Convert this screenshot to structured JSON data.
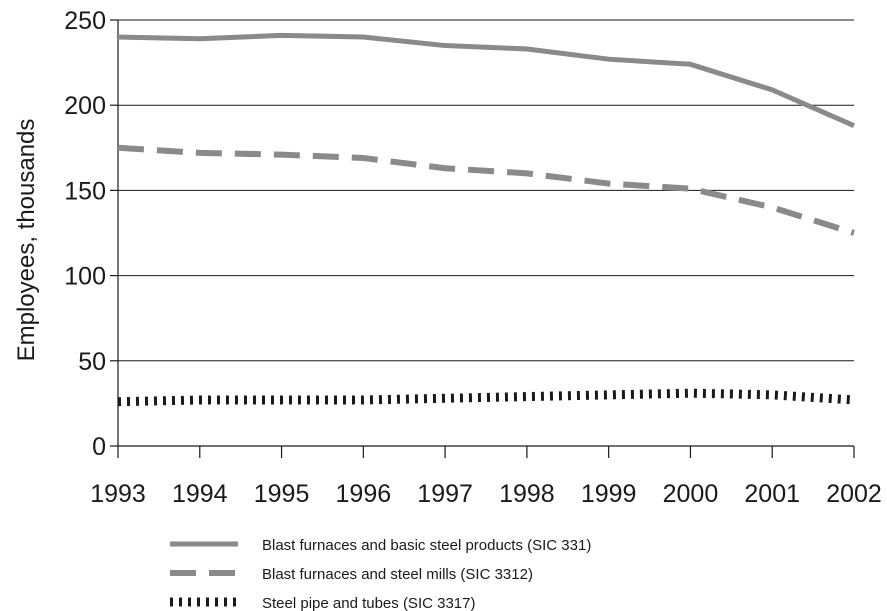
{
  "chart_data": {
    "type": "line",
    "title": "",
    "xlabel": "",
    "ylabel": "Employees, thousands",
    "ylim": [
      0,
      250
    ],
    "yticks": [
      0,
      50,
      100,
      150,
      200,
      250
    ],
    "x": [
      "1993",
      "1994",
      "1995",
      "1996",
      "1997",
      "1998",
      "1999",
      "2000",
      "2001",
      "2002"
    ],
    "grid": "horizontal",
    "legend_position": "bottom",
    "series": [
      {
        "name": "Blast furnaces and basic steel products (SIC 331)",
        "style": "solid",
        "color": "#8a8a8a",
        "values": [
          240,
          239,
          241,
          240,
          235,
          233,
          227,
          224,
          209,
          188
        ]
      },
      {
        "name": "Blast furnaces and steel mills (SIC 3312)",
        "style": "dashed",
        "color": "#8a8a8a",
        "values": [
          175,
          172,
          171,
          169,
          163,
          160,
          154,
          151,
          140,
          125
        ]
      },
      {
        "name": "Steel pipe and tubes (SIC 3317)",
        "style": "dotted",
        "color": "#1a1a1a",
        "values": [
          26,
          27,
          27,
          27,
          28,
          29,
          30,
          31,
          30,
          27
        ]
      }
    ]
  }
}
